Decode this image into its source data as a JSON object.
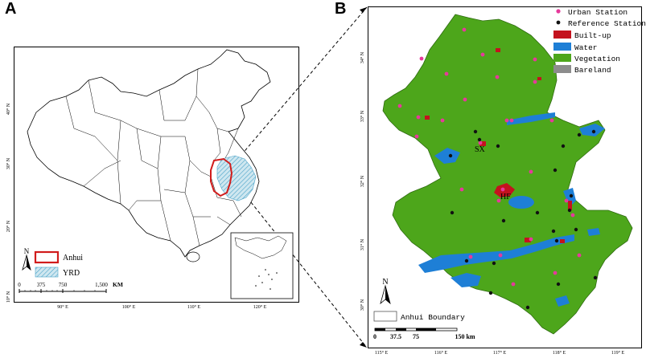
{
  "panels": {
    "a": {
      "letter": "A",
      "lat_ticks": [
        "40° N",
        "30° N",
        "20° N",
        "10° N"
      ],
      "lon_ticks": [
        "90° E",
        "100° E",
        "110° E",
        "120° E"
      ],
      "legend": [
        {
          "label": "Anhui",
          "style": "red-outline",
          "color": "#d11c1c"
        },
        {
          "label": "YRD",
          "style": "blue-hatch",
          "color": "#4aa3c8"
        }
      ],
      "scale": {
        "labels": [
          "0",
          "375",
          "750",
          "1,500"
        ],
        "unit": "KM"
      },
      "north": "N"
    },
    "b": {
      "letter": "B",
      "lat_ticks": [
        "34° N",
        "33° N",
        "32° N",
        "31° N",
        "30° N"
      ],
      "lon_ticks": [
        "115° E",
        "116° E",
        "117° E",
        "118° E",
        "119° E"
      ],
      "legend": [
        {
          "label": "Urban Station",
          "kind": "dot",
          "color": "#e6399b"
        },
        {
          "label": "Reference Station",
          "kind": "dot",
          "color": "#111111"
        },
        {
          "label": "Built-up",
          "kind": "box",
          "color": "#c4121e"
        },
        {
          "label": "Water",
          "kind": "box",
          "color": "#1e7fd6"
        },
        {
          "label": "Vegetation",
          "kind": "box",
          "color": "#4da61b"
        },
        {
          "label": "Bareland",
          "kind": "box",
          "color": "#8c8c8c"
        }
      ],
      "city_labels": [
        "SX",
        "HF"
      ],
      "boundary_legend": "Anhui Boundary",
      "scale": {
        "labels": [
          "0",
          "37.5",
          "75",
          "150 km"
        ]
      },
      "north": "N"
    }
  }
}
